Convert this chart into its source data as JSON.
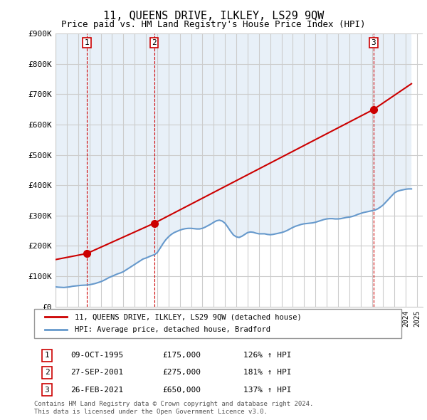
{
  "title": "11, QUEENS DRIVE, ILKLEY, LS29 9QW",
  "subtitle": "Price paid vs. HM Land Registry's House Price Index (HPI)",
  "ylabel_ticks": [
    "£0",
    "£100K",
    "£200K",
    "£300K",
    "£400K",
    "£500K",
    "£600K",
    "£700K",
    "£800K",
    "£900K"
  ],
  "ylim": [
    0,
    900000
  ],
  "xlim_start": 1993.0,
  "xlim_end": 2025.5,
  "sale_dates": [
    1995.77,
    2001.74,
    2021.15
  ],
  "sale_prices": [
    175000,
    275000,
    650000
  ],
  "sale_labels": [
    "1",
    "2",
    "3"
  ],
  "legend_line1": "11, QUEENS DRIVE, ILKLEY, LS29 9QW (detached house)",
  "legend_line2": "HPI: Average price, detached house, Bradford",
  "table_rows": [
    [
      "1",
      "09-OCT-1995",
      "£175,000",
      "126% ↑ HPI"
    ],
    [
      "2",
      "27-SEP-2001",
      "£275,000",
      "181% ↑ HPI"
    ],
    [
      "3",
      "26-FEB-2021",
      "£650,000",
      "137% ↑ HPI"
    ]
  ],
  "footer": "Contains HM Land Registry data © Crown copyright and database right 2024.\nThis data is licensed under the Open Government Licence v3.0.",
  "hpi_color": "#6699cc",
  "sale_line_color": "#cc0000",
  "sale_marker_color": "#cc0000",
  "dashed_line_color": "#cc0000",
  "background_hatch_color": "#e8f0f8",
  "grid_color": "#cccccc",
  "hpi_data": {
    "years": [
      1993.0,
      1993.25,
      1993.5,
      1993.75,
      1994.0,
      1994.25,
      1994.5,
      1994.75,
      1995.0,
      1995.25,
      1995.5,
      1995.75,
      1996.0,
      1996.25,
      1996.5,
      1996.75,
      1997.0,
      1997.25,
      1997.5,
      1997.75,
      1998.0,
      1998.25,
      1998.5,
      1998.75,
      1999.0,
      1999.25,
      1999.5,
      1999.75,
      2000.0,
      2000.25,
      2000.5,
      2000.75,
      2001.0,
      2001.25,
      2001.5,
      2001.75,
      2002.0,
      2002.25,
      2002.5,
      2002.75,
      2003.0,
      2003.25,
      2003.5,
      2003.75,
      2004.0,
      2004.25,
      2004.5,
      2004.75,
      2005.0,
      2005.25,
      2005.5,
      2005.75,
      2006.0,
      2006.25,
      2006.5,
      2006.75,
      2007.0,
      2007.25,
      2007.5,
      2007.75,
      2008.0,
      2008.25,
      2008.5,
      2008.75,
      2009.0,
      2009.25,
      2009.5,
      2009.75,
      2010.0,
      2010.25,
      2010.5,
      2010.75,
      2011.0,
      2011.25,
      2011.5,
      2011.75,
      2012.0,
      2012.25,
      2012.5,
      2012.75,
      2013.0,
      2013.25,
      2013.5,
      2013.75,
      2014.0,
      2014.25,
      2014.5,
      2014.75,
      2015.0,
      2015.25,
      2015.5,
      2015.75,
      2016.0,
      2016.25,
      2016.5,
      2016.75,
      2017.0,
      2017.25,
      2017.5,
      2017.75,
      2018.0,
      2018.25,
      2018.5,
      2018.75,
      2019.0,
      2019.25,
      2019.5,
      2019.75,
      2020.0,
      2020.25,
      2020.5,
      2020.75,
      2021.0,
      2021.25,
      2021.5,
      2021.75,
      2022.0,
      2022.25,
      2022.5,
      2022.75,
      2023.0,
      2023.25,
      2023.5,
      2023.75,
      2024.0,
      2024.25,
      2024.5
    ],
    "values": [
      65000,
      64000,
      63500,
      63000,
      64000,
      65000,
      67000,
      68000,
      69000,
      70000,
      70500,
      71000,
      72000,
      74000,
      76000,
      79000,
      82000,
      86000,
      91000,
      96000,
      100000,
      104000,
      108000,
      111000,
      115000,
      121000,
      127000,
      133000,
      139000,
      145000,
      151000,
      157000,
      160000,
      164000,
      168000,
      171000,
      178000,
      192000,
      207000,
      220000,
      230000,
      238000,
      244000,
      248000,
      252000,
      255000,
      257000,
      258000,
      258000,
      257000,
      256000,
      256000,
      258000,
      262000,
      267000,
      272000,
      278000,
      283000,
      285000,
      282000,
      275000,
      262000,
      248000,
      236000,
      230000,
      228000,
      232000,
      238000,
      244000,
      246000,
      245000,
      242000,
      240000,
      240000,
      240000,
      238000,
      237000,
      238000,
      240000,
      242000,
      244000,
      247000,
      251000,
      256000,
      261000,
      265000,
      268000,
      271000,
      273000,
      274000,
      275000,
      276000,
      278000,
      281000,
      284000,
      287000,
      289000,
      290000,
      290000,
      289000,
      289000,
      290000,
      292000,
      294000,
      295000,
      297000,
      300000,
      304000,
      307000,
      310000,
      312000,
      314000,
      316000,
      318000,
      322000,
      328000,
      335000,
      345000,
      355000,
      365000,
      375000,
      380000,
      383000,
      385000,
      387000,
      388000,
      388000
    ]
  },
  "price_line_data": {
    "years": [
      1993.0,
      1995.77,
      2001.74,
      2021.15,
      2025.5
    ],
    "values": [
      155000,
      175000,
      275000,
      650000,
      760000
    ]
  }
}
